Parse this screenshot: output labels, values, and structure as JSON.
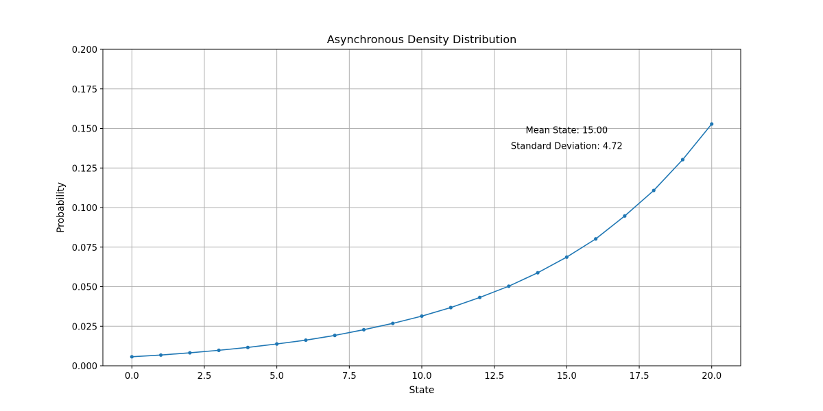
{
  "chart_data": {
    "type": "line",
    "title": "Asynchronous Density Distribution",
    "xlabel": "State",
    "ylabel": "Probability",
    "xlim": [
      -1,
      21
    ],
    "ylim": [
      0,
      0.2
    ],
    "xticks": [
      0.0,
      2.5,
      5.0,
      7.5,
      10.0,
      12.5,
      15.0,
      17.5,
      20.0
    ],
    "xtick_labels": [
      "0.0",
      "2.5",
      "5.0",
      "7.5",
      "10.0",
      "12.5",
      "15.0",
      "17.5",
      "20.0"
    ],
    "yticks": [
      0.0,
      0.025,
      0.05,
      0.075,
      0.1,
      0.125,
      0.15,
      0.175,
      0.2
    ],
    "ytick_labels": [
      "0.000",
      "0.025",
      "0.050",
      "0.075",
      "0.100",
      "0.125",
      "0.150",
      "0.175",
      "0.200"
    ],
    "grid": true,
    "series": [
      {
        "color": "#1f77b4",
        "marker": "circle",
        "x": [
          0,
          1,
          2,
          3,
          4,
          5,
          6,
          7,
          8,
          9,
          10,
          11,
          12,
          13,
          14,
          15,
          16,
          17,
          18,
          19,
          20
        ],
        "values": [
          0.0057,
          0.0068,
          0.0082,
          0.0098,
          0.0116,
          0.0138,
          0.0162,
          0.0192,
          0.0228,
          0.0268,
          0.0314,
          0.0368,
          0.0432,
          0.0503,
          0.0588,
          0.0687,
          0.0802,
          0.0947,
          0.1108,
          0.1303,
          0.1528
        ]
      }
    ],
    "annotations": [
      {
        "text": "Mean State: 15.00",
        "x": 15.0,
        "y": 0.147
      },
      {
        "text": "Standard Deviation: 4.72",
        "x": 15.0,
        "y": 0.137
      }
    ]
  }
}
